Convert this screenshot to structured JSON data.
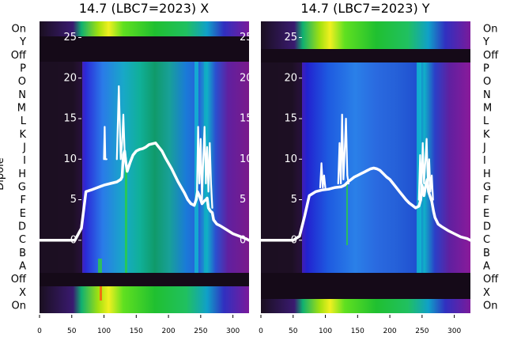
{
  "chart_data": [
    {
      "type": "heatmap",
      "title": "14.7 (LBC7=2023) X",
      "ylabel": "Dipole",
      "dipole_labels": [
        "On",
        "Y",
        "Off",
        "P",
        "O",
        "N",
        "M",
        "L",
        "K",
        "J",
        "I",
        "H",
        "G",
        "F",
        "E",
        "D",
        "C",
        "B",
        "A",
        "Off",
        "X",
        "On"
      ],
      "x_ticks": [
        0,
        50,
        100,
        150,
        200,
        250,
        300
      ],
      "y_ticks": [
        0,
        5,
        10,
        15,
        20,
        25
      ],
      "xlim": [
        0,
        325
      ],
      "ylim": [
        -9,
        27
      ],
      "series": [
        {
          "x": [
            0,
            55,
            65,
            72,
            80,
            90,
            100,
            110,
            120,
            126,
            128,
            130,
            132,
            134,
            136,
            140,
            145,
            150,
            155,
            160,
            165,
            170,
            175,
            180,
            185,
            190,
            195,
            200,
            205,
            210,
            215,
            220,
            225,
            230,
            235,
            240,
            243,
            245,
            248,
            250,
            252,
            255,
            258,
            260,
            262,
            265,
            268,
            270,
            275,
            280,
            290,
            300,
            310,
            320,
            325
          ],
          "y": [
            0,
            0,
            1.5,
            6,
            6.2,
            6.5,
            6.8,
            7,
            7.2,
            7.5,
            7.8,
            10.5,
            11,
            9.5,
            8.5,
            9.5,
            10.5,
            11,
            11.2,
            11.3,
            11.5,
            11.8,
            11.9,
            12,
            11.5,
            11,
            10.2,
            9.5,
            8.8,
            8,
            7.2,
            6.5,
            5.8,
            5,
            4.5,
            4.3,
            5,
            6,
            5.5,
            5,
            4.5,
            4.8,
            5,
            5.2,
            4,
            3.6,
            3.4,
            2.5,
            2,
            1.8,
            1.3,
            0.8,
            0.5,
            0.2,
            0
          ]
        },
        {
          "x": [
            100,
            101,
            102,
            104
          ],
          "y": [
            10,
            14,
            10,
            10
          ]
        },
        {
          "x": [
            120,
            123,
            126,
            128,
            130,
            132,
            134
          ],
          "y": [
            10,
            19,
            10,
            12,
            15.5,
            11,
            10
          ]
        },
        {
          "x": [
            244,
            246,
            248,
            250,
            252,
            254,
            256,
            258,
            260,
            262,
            264,
            266,
            268
          ],
          "y": [
            5,
            14,
            7,
            12.5,
            5,
            10,
            14,
            7,
            11.5,
            6,
            12,
            7,
            4
          ]
        }
      ]
    },
    {
      "type": "heatmap",
      "title": "14.7 (LBC7=2023) Y",
      "dipole_labels": [
        "On",
        "Y",
        "Off",
        "P",
        "O",
        "N",
        "M",
        "L",
        "K",
        "J",
        "I",
        "H",
        "G",
        "F",
        "E",
        "D",
        "C",
        "B",
        "A",
        "Off",
        "X",
        "On"
      ],
      "x_ticks": [
        0,
        50,
        100,
        150,
        200,
        250,
        300
      ],
      "y_ticks": [
        0,
        5,
        10,
        15,
        20,
        25
      ],
      "xlim": [
        0,
        325
      ],
      "ylim": [
        -9,
        27
      ],
      "series": [
        {
          "x": [
            0,
            50,
            60,
            68,
            75,
            85,
            95,
            105,
            115,
            125,
            130,
            135,
            140,
            145,
            150,
            155,
            160,
            165,
            170,
            175,
            180,
            185,
            190,
            195,
            200,
            205,
            210,
            215,
            220,
            225,
            230,
            235,
            240,
            245,
            248,
            250,
            253,
            255,
            258,
            260,
            265,
            268,
            270,
            275,
            280,
            290,
            300,
            310,
            320,
            325
          ],
          "y": [
            0,
            0,
            0.5,
            3,
            5.5,
            6,
            6.2,
            6.3,
            6.5,
            6.6,
            6.8,
            7.2,
            7.5,
            7.8,
            8,
            8.2,
            8.4,
            8.6,
            8.8,
            8.9,
            8.8,
            8.6,
            8.2,
            7.8,
            7.5,
            7,
            6.5,
            6,
            5.5,
            5,
            4.6,
            4.3,
            4,
            4.2,
            5,
            6.8,
            5.5,
            6.5,
            7.5,
            6,
            4.8,
            3.5,
            2.8,
            2,
            1.7,
            1.2,
            0.8,
            0.4,
            0.2,
            0
          ]
        },
        {
          "x": [
            92,
            94,
            96,
            98,
            100
          ],
          "y": [
            6.5,
            9.5,
            6.5,
            8,
            6.5
          ]
        },
        {
          "x": [
            120,
            122,
            124,
            126,
            128,
            130,
            132,
            134,
            136
          ],
          "y": [
            7,
            12,
            7,
            15.5,
            7.5,
            11,
            15,
            8,
            7
          ]
        },
        {
          "x": [
            245,
            247,
            249,
            251,
            253,
            255,
            257,
            259,
            261,
            263,
            265,
            267
          ],
          "y": [
            5,
            10.5,
            6,
            12,
            7,
            9.5,
            12.5,
            6.5,
            10,
            6,
            8,
            5
          ]
        }
      ]
    }
  ]
}
